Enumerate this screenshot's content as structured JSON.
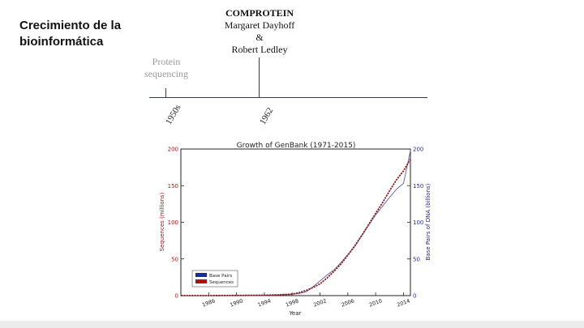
{
  "slide": {
    "title": "Crecimiento de la bioinformática",
    "colors": {
      "axis": "#2f3b4c",
      "muted": "#9a9a9a",
      "bottom_bar": "#ececec"
    }
  },
  "timeline": {
    "events": [
      {
        "year_label": "1950s",
        "lines": [
          "Protein",
          "sequencing"
        ]
      },
      {
        "year_label": "1962",
        "heading": "COMPROTEIN",
        "lines": [
          "Margaret Dayhoff",
          "&",
          "Robert Ledley"
        ]
      }
    ]
  },
  "chart_data": {
    "type": "line",
    "title": "Growth of GenBank (1971-2015)",
    "xlabel": "Year",
    "ylabel_left": "Sequences (millions)",
    "ylabel_right": "Base Pairs of DNA (billions)",
    "xlim": [
      1982,
      2015
    ],
    "ylim_left": [
      0,
      200
    ],
    "ylim_right": [
      0,
      200
    ],
    "x_ticks": [
      1986,
      1990,
      1994,
      1998,
      2002,
      2006,
      2010,
      2014
    ],
    "y_ticks_left": [
      0,
      50,
      100,
      150,
      200
    ],
    "y_ticks_right": [
      0,
      50,
      100,
      150,
      200
    ],
    "legend": {
      "placement": "lower-left",
      "entries": [
        "Base Pairs",
        "Sequences"
      ]
    },
    "colors": {
      "left_axis": "#8b1a1a",
      "right_axis": "#2b2b7a",
      "base_pairs": "#6a6aa8",
      "sequences": "#8b1a1a",
      "legend_base_pairs": "#1a2a9a",
      "legend_sequences": "#aa1111"
    },
    "series": [
      {
        "name": "Base Pairs",
        "axis": "right",
        "x": [
          1982,
          1986,
          1990,
          1994,
          1996,
          1998,
          1999,
          2000,
          2001,
          2002,
          2003,
          2004,
          2005,
          2006,
          2007,
          2008,
          2009,
          2010,
          2011,
          2012,
          2013,
          2014,
          2014.5,
          2015
        ],
        "values": [
          0,
          0,
          0.2,
          0.5,
          1,
          2,
          3,
          5,
          12,
          20,
          28,
          35,
          45,
          56,
          67,
          82,
          96,
          110,
          122,
          134,
          145,
          153,
          175,
          198
        ]
      },
      {
        "name": "Sequences",
        "axis": "left",
        "x": [
          1982,
          1986,
          1990,
          1994,
          1996,
          1998,
          1999,
          2000,
          2001,
          2002,
          2003,
          2004,
          2005,
          2006,
          2007,
          2008,
          2009,
          2010,
          2011,
          2012,
          2013,
          2014,
          2015
        ],
        "values": [
          0,
          0,
          0.2,
          0.6,
          1,
          2,
          4,
          7,
          11,
          16,
          24,
          33,
          43,
          55,
          68,
          82,
          97,
          112,
          127,
          143,
          158,
          170,
          186
        ]
      }
    ]
  }
}
